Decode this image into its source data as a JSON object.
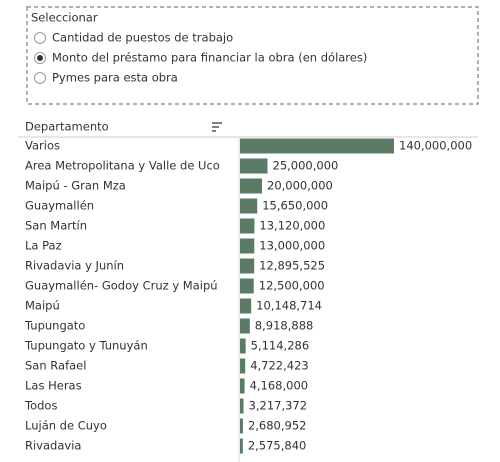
{
  "filter": {
    "title": "Seleccionar",
    "options": [
      "Cantidad de puestos de trabajo",
      "Monto del préstamo para financiar la obra (en dólares)",
      "Pymes para esta obra"
    ],
    "selected": 1
  },
  "chart_data": {
    "type": "bar",
    "orientation": "horizontal",
    "category_header": "Departamento",
    "categories": [
      "Varios",
      "Area Metropolitana y Valle de Uco",
      "Maipú - Gran Mza",
      "Guaymallén",
      "San Martín",
      "La Paz",
      "Rivadavia y Junín",
      "Guaymallén- Godoy Cruz y Maipú",
      "Maipú",
      "Tupungato",
      "Tupungato y Tunuyán",
      "San Rafael",
      "Las Heras",
      "Todos",
      "Luján de Cuyo",
      "Rivadavia"
    ],
    "values": [
      140000000,
      25000000,
      20000000,
      15650000,
      13120000,
      13000000,
      12895525,
      12500000,
      10148714,
      8918888,
      5114286,
      4722423,
      4168000,
      3217372,
      2680952,
      2575840
    ],
    "value_labels": [
      "140,000,000",
      "25,000,000",
      "20,000,000",
      "15,650,000",
      "13,120,000",
      "13,000,000",
      "12,895,525",
      "12,500,000",
      "10,148,714",
      "8,918,888",
      "5,114,286",
      "4,722,423",
      "4,168,000",
      "3,217,372",
      "2,680,952",
      "2,575,840"
    ],
    "color": "#5b7b67"
  }
}
